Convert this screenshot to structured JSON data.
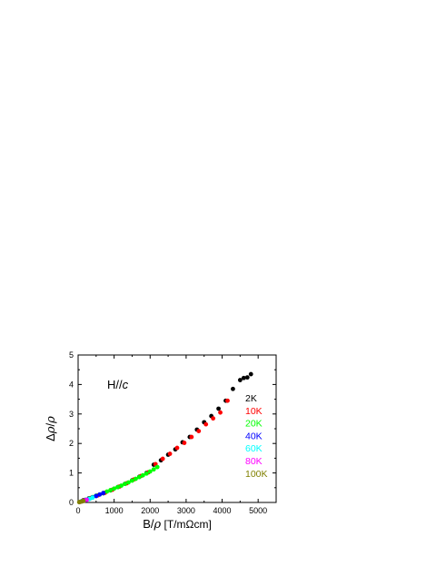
{
  "chart_data": {
    "type": "scatter",
    "title": "",
    "annotation": {
      "prefix": "H//",
      "italic": "c"
    },
    "xlabel_parts": {
      "a": "B/",
      "b": "ρ",
      "c": " [T/mΩcm]"
    },
    "ylabel_parts": {
      "a": "Δ",
      "b": "ρ",
      "c": "/",
      "d": "ρ"
    },
    "xlim": [
      0,
      5500
    ],
    "ylim": [
      0,
      5
    ],
    "xticks": [
      "0",
      "1000",
      "2000",
      "3000",
      "4000",
      "5000"
    ],
    "yticks": [
      "0",
      "1",
      "2",
      "3",
      "4",
      "5"
    ],
    "legend_position": "right",
    "series": [
      {
        "name": "2K",
        "color": "#000000",
        "x": [
          150,
          300,
          500,
          700,
          900,
          1100,
          1300,
          1500,
          1700,
          1900,
          2100,
          2300,
          2500,
          2700,
          2900,
          3100,
          3300,
          3500,
          3700,
          3900,
          4100,
          4300,
          4500,
          4600,
          4700,
          4800
        ],
        "y": [
          0.08,
          0.14,
          0.22,
          0.31,
          0.41,
          0.52,
          0.63,
          0.75,
          0.87,
          1.0,
          1.28,
          1.43,
          1.62,
          1.8,
          2.04,
          2.22,
          2.47,
          2.72,
          2.93,
          3.18,
          3.45,
          3.85,
          4.15,
          4.22,
          4.24,
          4.35
        ]
      },
      {
        "name": "10K",
        "color": "#ff0000",
        "x": [
          150,
          350,
          550,
          750,
          950,
          1150,
          1350,
          1550,
          1750,
          1950,
          2150,
          2350,
          2550,
          2750,
          2950,
          3150,
          3350,
          3550,
          3750,
          3950,
          4150
        ],
        "y": [
          0.07,
          0.15,
          0.24,
          0.33,
          0.43,
          0.54,
          0.65,
          0.78,
          0.9,
          1.02,
          1.3,
          1.48,
          1.65,
          1.85,
          2.02,
          2.22,
          2.42,
          2.65,
          2.85,
          3.05,
          3.45
        ]
      },
      {
        "name": "20K",
        "color": "#00ff00",
        "x": [
          100,
          200,
          300,
          400,
          500,
          600,
          700,
          800,
          900,
          1000,
          1100,
          1200,
          1300,
          1400,
          1500,
          1600,
          1700,
          1800,
          1900,
          2000,
          2100,
          2200
        ],
        "y": [
          0.04,
          0.09,
          0.13,
          0.18,
          0.23,
          0.27,
          0.32,
          0.37,
          0.42,
          0.47,
          0.52,
          0.57,
          0.63,
          0.68,
          0.74,
          0.8,
          0.86,
          0.92,
          0.98,
          1.05,
          1.12,
          1.2
        ]
      },
      {
        "name": "40K",
        "color": "#0000ff",
        "x": [
          100,
          200,
          300,
          400,
          500,
          600,
          700
        ],
        "y": [
          0.04,
          0.08,
          0.12,
          0.17,
          0.22,
          0.27,
          0.32
        ]
      },
      {
        "name": "60K",
        "color": "#00ffff",
        "x": [
          80,
          160,
          240,
          320,
          400
        ],
        "y": [
          0.03,
          0.06,
          0.09,
          0.12,
          0.16
        ]
      },
      {
        "name": "80K",
        "color": "#ff00ff",
        "x": [
          60,
          120,
          180,
          240
        ],
        "y": [
          0.02,
          0.04,
          0.07,
          0.09
        ]
      },
      {
        "name": "100K",
        "color": "#808000",
        "x": [
          30,
          60,
          90,
          120,
          150
        ],
        "y": [
          0.01,
          0.02,
          0.03,
          0.04,
          0.05
        ]
      }
    ]
  }
}
